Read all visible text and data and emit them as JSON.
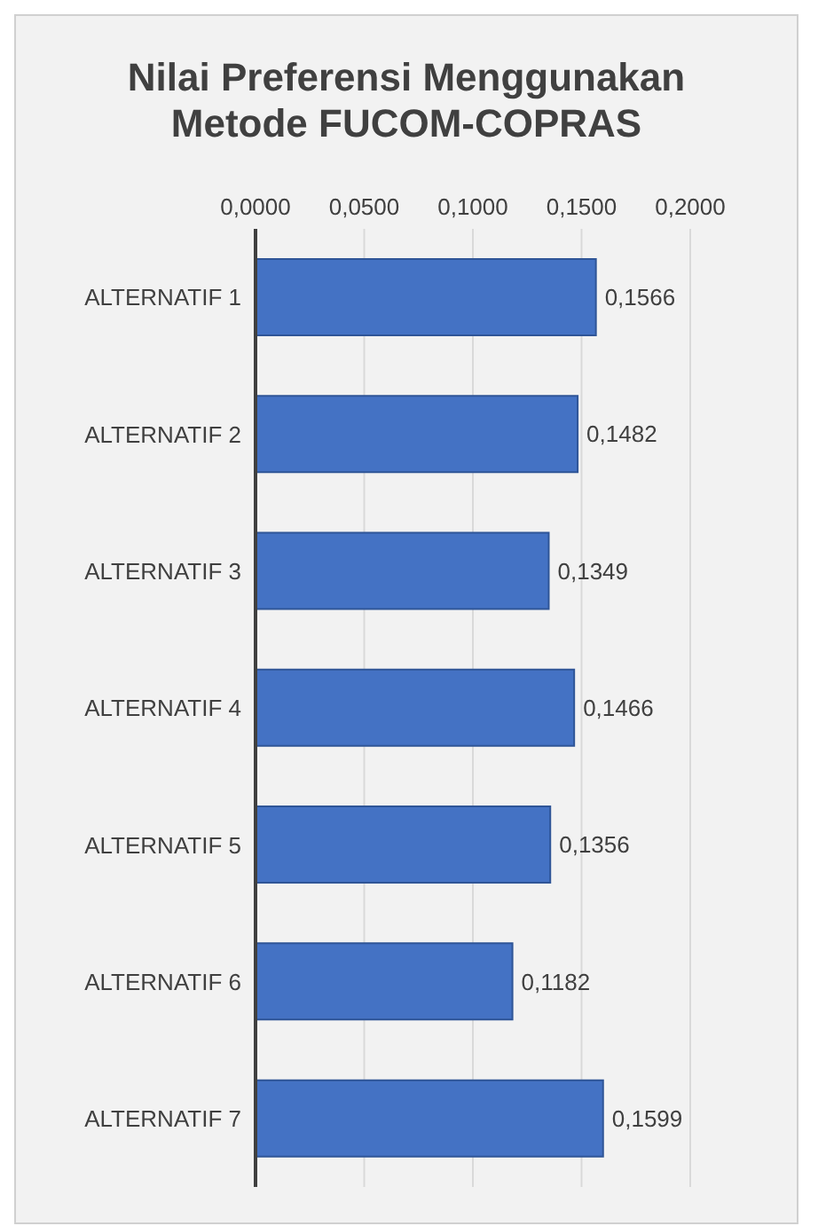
{
  "chart_data": {
    "type": "bar",
    "orientation": "horizontal",
    "title": "Nilai Preferensi Menggunakan Metode FUCOM-COPRAS",
    "categories": [
      "ALTERNATIF 1",
      "ALTERNATIF 2",
      "ALTERNATIF 3",
      "ALTERNATIF 4",
      "ALTERNATIF 5",
      "ALTERNATIF 6",
      "ALTERNATIF 7"
    ],
    "values": [
      0.1566,
      0.1482,
      0.1349,
      0.1466,
      0.1356,
      0.1182,
      0.1599
    ],
    "value_labels": [
      "0,1566",
      "0,1482",
      "0,1349",
      "0,1466",
      "0,1356",
      "0,1182",
      "0,1599"
    ],
    "color": "#4472c4",
    "xlim": [
      0,
      0.2
    ],
    "xticks": [
      {
        "value": 0,
        "label": "0,0000"
      },
      {
        "value": 0.05,
        "label": "0,0500"
      },
      {
        "value": 0.1,
        "label": "0,1000"
      },
      {
        "value": 0.15,
        "label": "0,1500"
      },
      {
        "value": 0.2,
        "label": "0,2000"
      }
    ],
    "grid": "x"
  }
}
